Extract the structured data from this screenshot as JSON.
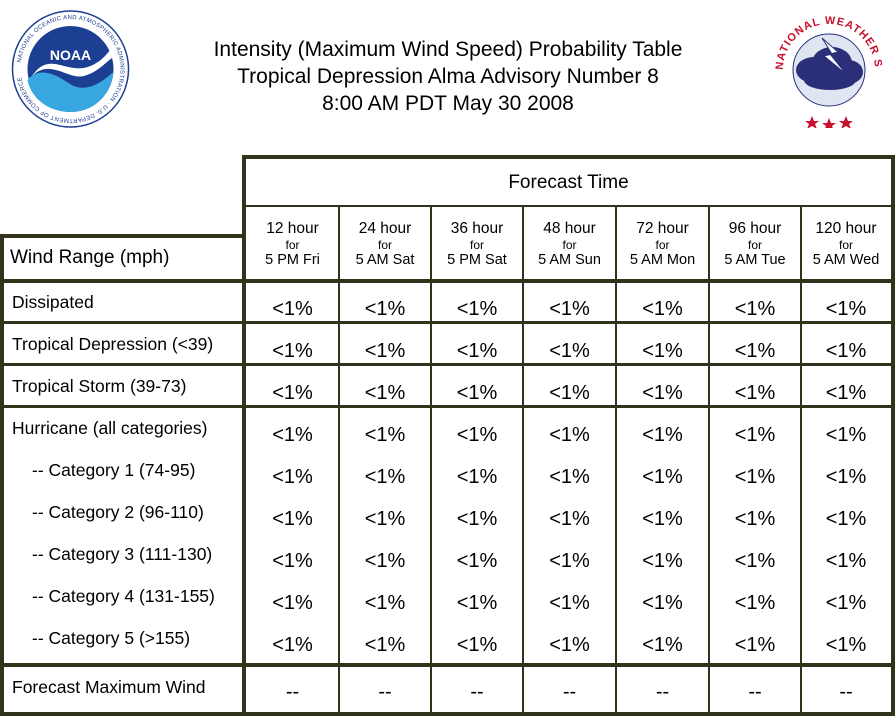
{
  "header": {
    "title_line1": "Intensity (Maximum Wind Speed) Probability Table",
    "title_line2": "Tropical Depression Alma Advisory Number 8",
    "title_line3": "8:00 AM PDT May 30 2008",
    "noaa_logo_text": "NOAA",
    "noaa_ring_text": "NATIONAL OCEANIC AND ATMOSPHERIC ADMINISTRATION · U.S. DEPARTMENT OF COMMERCE",
    "nws_ring_text": "NATIONAL WEATHER SERVICE"
  },
  "table": {
    "forecast_time_label": "Forecast Time",
    "wind_range_label": "Wind Range (mph)",
    "columns": [
      {
        "hour": "12 hour",
        "for": "for",
        "time": "5 PM Fri"
      },
      {
        "hour": "24 hour",
        "for": "for",
        "time": "5 AM Sat"
      },
      {
        "hour": "36 hour",
        "for": "for",
        "time": "5 PM Sat"
      },
      {
        "hour": "48 hour",
        "for": "for",
        "time": "5 AM Sun"
      },
      {
        "hour": "72 hour",
        "for": "for",
        "time": "5 AM Mon"
      },
      {
        "hour": "96 hour",
        "for": "for",
        "time": "5 AM Tue"
      },
      {
        "hour": "120 hour",
        "for": "for",
        "time": "5 AM Wed"
      }
    ],
    "rows": [
      {
        "label": "Dissipated",
        "values": [
          "<1%",
          "<1%",
          "<1%",
          "<1%",
          "<1%",
          "<1%",
          "<1%"
        ]
      },
      {
        "label": "Tropical Depression (<39)",
        "values": [
          "<1%",
          "<1%",
          "<1%",
          "<1%",
          "<1%",
          "<1%",
          "<1%"
        ]
      },
      {
        "label": "Tropical Storm (39-73)",
        "values": [
          "<1%",
          "<1%",
          "<1%",
          "<1%",
          "<1%",
          "<1%",
          "<1%"
        ]
      },
      {
        "label": "Hurricane (all categories)",
        "values": [
          "<1%",
          "<1%",
          "<1%",
          "<1%",
          "<1%",
          "<1%",
          "<1%"
        ]
      },
      {
        "label": "-- Category 1 (74-95)",
        "values": [
          "<1%",
          "<1%",
          "<1%",
          "<1%",
          "<1%",
          "<1%",
          "<1%"
        ]
      },
      {
        "label": "-- Category 2 (96-110)",
        "values": [
          "<1%",
          "<1%",
          "<1%",
          "<1%",
          "<1%",
          "<1%",
          "<1%"
        ]
      },
      {
        "label": "-- Category 3 (111-130)",
        "values": [
          "<1%",
          "<1%",
          "<1%",
          "<1%",
          "<1%",
          "<1%",
          "<1%"
        ]
      },
      {
        "label": "-- Category 4 (131-155)",
        "values": [
          "<1%",
          "<1%",
          "<1%",
          "<1%",
          "<1%",
          "<1%",
          "<1%"
        ]
      },
      {
        "label": "-- Category 5 (>155)",
        "values": [
          "<1%",
          "<1%",
          "<1%",
          "<1%",
          "<1%",
          "<1%",
          "<1%"
        ]
      }
    ],
    "max_wind": {
      "label": "Forecast Maximum Wind",
      "values": [
        "--",
        "--",
        "--",
        "--",
        "--",
        "--",
        "--"
      ]
    }
  },
  "colors": {
    "border": "#33321a",
    "noaa_blue": "#1c3f94",
    "nws_red": "#c8102e",
    "nws_cloud": "#2b2f7a"
  }
}
